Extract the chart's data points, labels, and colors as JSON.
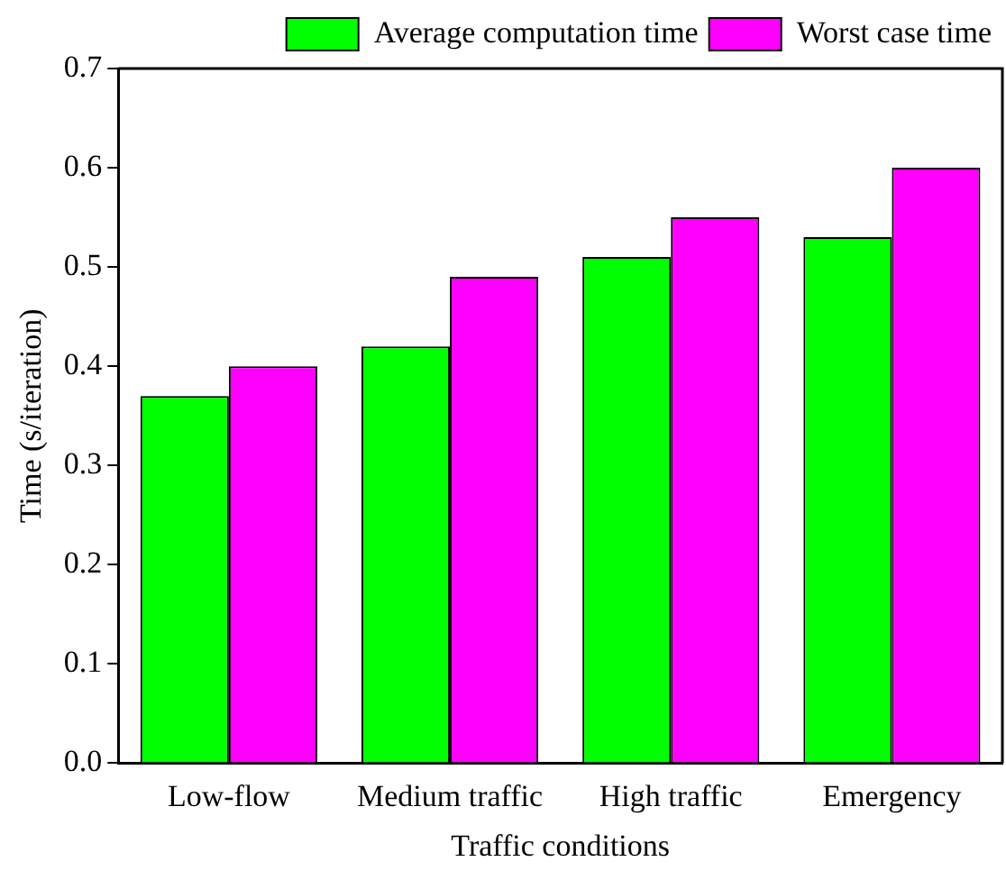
{
  "chart_data": {
    "type": "bar",
    "xlabel": "Traffic conditions",
    "ylabel": "Time (s/iteration)",
    "categories": [
      "Low-flow",
      "Medium traffic",
      "High traffic",
      "Emergency"
    ],
    "series": [
      {
        "name": "Average computation time",
        "color": "#00ff00",
        "values": [
          0.37,
          0.42,
          0.51,
          0.53
        ]
      },
      {
        "name": "Worst case time",
        "color": "#ff00ff",
        "values": [
          0.4,
          0.49,
          0.55,
          0.6
        ]
      }
    ],
    "ylim": [
      0,
      0.7
    ],
    "yticks": [
      {
        "value": 0,
        "label": "0.0"
      },
      0.1,
      0.2,
      0.3,
      0.4,
      0.5,
      0.6,
      0.7
    ],
    "grid": false,
    "legend": "top right"
  }
}
